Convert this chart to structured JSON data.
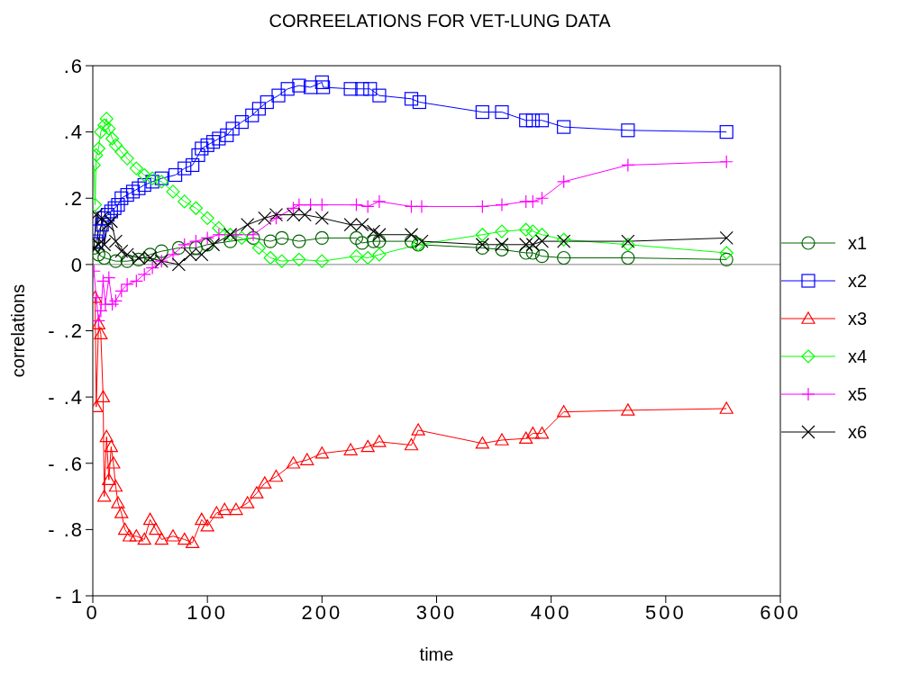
{
  "chart_data": {
    "type": "line",
    "title": "CORREELATIONS FOR VET-LUNG DATA",
    "xlabel": "time",
    "ylabel": "correlations",
    "xlim": [
      0,
      600
    ],
    "xticks": [
      0,
      100,
      200,
      300,
      400,
      500,
      600
    ],
    "ylim": [
      -1,
      0.6
    ],
    "yticks": [
      {
        "value": -1,
        "label": "- 1"
      },
      {
        "value": -0.8,
        "label": "- .8"
      },
      {
        "value": -0.6,
        "label": "- .6"
      },
      {
        "value": -0.4,
        "label": "- .4"
      },
      {
        "value": -0.2,
        "label": "- .2"
      },
      {
        "value": 0,
        "label": "0"
      },
      {
        "value": 0.2,
        "label": ".2"
      },
      {
        "value": 0.4,
        "label": ".4"
      },
      {
        "value": 0.6,
        "label": ".6"
      }
    ],
    "grid": false,
    "legend": "right",
    "ref_lines": [
      {
        "axis": "y",
        "value": 0,
        "color": "#808080"
      }
    ],
    "series": [
      {
        "name": "x1",
        "color": "#006400",
        "marker": "circle",
        "x": [
          1,
          5,
          10,
          20,
          30,
          40,
          50,
          60,
          75,
          90,
          100,
          120,
          140,
          155,
          165,
          180,
          200,
          230,
          235,
          245,
          250,
          278,
          284,
          340,
          357,
          378,
          384,
          392,
          411,
          467,
          553
        ],
        "values": [
          0.05,
          0.03,
          0.02,
          0.01,
          0.01,
          0.015,
          0.03,
          0.04,
          0.05,
          0.05,
          0.06,
          0.07,
          0.08,
          0.07,
          0.08,
          0.07,
          0.08,
          0.08,
          0.065,
          0.07,
          0.07,
          0.07,
          0.06,
          0.05,
          0.045,
          0.035,
          0.035,
          0.025,
          0.02,
          0.02,
          0.015
        ]
      },
      {
        "name": "x2",
        "color": "#0000ff",
        "marker": "square",
        "x": [
          3,
          5,
          8,
          10,
          13,
          16,
          19,
          22,
          25,
          30,
          35,
          40,
          45,
          52,
          60,
          72,
          80,
          87,
          92,
          95,
          100,
          105,
          110,
          117,
          122,
          130,
          139,
          145,
          152,
          162,
          170,
          180,
          190,
          200,
          201,
          225,
          235,
          242,
          250,
          278,
          285,
          340,
          357,
          378,
          384,
          392,
          411,
          467,
          553
        ],
        "values": [
          0.07,
          0.1,
          0.12,
          0.14,
          0.15,
          0.16,
          0.17,
          0.18,
          0.2,
          0.21,
          0.22,
          0.23,
          0.24,
          0.25,
          0.26,
          0.27,
          0.29,
          0.3,
          0.33,
          0.35,
          0.36,
          0.37,
          0.38,
          0.39,
          0.41,
          0.43,
          0.45,
          0.47,
          0.49,
          0.51,
          0.53,
          0.54,
          0.535,
          0.55,
          0.535,
          0.53,
          0.53,
          0.53,
          0.51,
          0.5,
          0.49,
          0.46,
          0.46,
          0.435,
          0.435,
          0.435,
          0.415,
          0.405,
          0.4
        ]
      },
      {
        "name": "x3",
        "color": "#ff0000",
        "marker": "triangle",
        "x": [
          2,
          3,
          5,
          7,
          9,
          10,
          12,
          14,
          16,
          18,
          20,
          22,
          25,
          28,
          32,
          38,
          45,
          50,
          55,
          60,
          70,
          80,
          87,
          95,
          100,
          108,
          115,
          125,
          135,
          143,
          150,
          160,
          175,
          187,
          200,
          225,
          240,
          250,
          278,
          284,
          340,
          357,
          378,
          384,
          392,
          411,
          467,
          553
        ],
        "values": [
          -0.1,
          -0.43,
          -0.18,
          -0.21,
          -0.4,
          -0.7,
          -0.52,
          -0.65,
          -0.55,
          -0.6,
          -0.67,
          -0.72,
          -0.75,
          -0.8,
          -0.82,
          -0.82,
          -0.83,
          -0.77,
          -0.8,
          -0.83,
          -0.82,
          -0.83,
          -0.84,
          -0.77,
          -0.79,
          -0.75,
          -0.74,
          -0.74,
          -0.72,
          -0.69,
          -0.66,
          -0.64,
          -0.6,
          -0.59,
          -0.57,
          -0.56,
          -0.55,
          -0.535,
          -0.545,
          -0.5,
          -0.54,
          -0.53,
          -0.525,
          -0.51,
          -0.51,
          -0.445,
          -0.44,
          -0.435
        ]
      },
      {
        "name": "x4",
        "color": "#00ff00",
        "marker": "diamond",
        "x": [
          1,
          2,
          3,
          5,
          7,
          10,
          12,
          14,
          17,
          20,
          25,
          30,
          38,
          45,
          52,
          60,
          70,
          80,
          90,
          100,
          110,
          120,
          130,
          145,
          155,
          165,
          180,
          200,
          230,
          240,
          250,
          284,
          340,
          357,
          378,
          384,
          392,
          411,
          467,
          553
        ],
        "values": [
          0.3,
          0.18,
          0.33,
          0.35,
          0.4,
          0.42,
          0.44,
          0.41,
          0.38,
          0.36,
          0.34,
          0.32,
          0.29,
          0.27,
          0.26,
          0.25,
          0.22,
          0.19,
          0.17,
          0.14,
          0.11,
          0.09,
          0.08,
          0.05,
          0.02,
          0.01,
          0.015,
          0.01,
          0.025,
          0.02,
          0.03,
          0.06,
          0.09,
          0.1,
          0.105,
          0.1,
          0.09,
          0.075,
          0.06,
          0.035
        ]
      },
      {
        "name": "x5",
        "color": "#ff00ff",
        "marker": "cross",
        "x": [
          1,
          3,
          5,
          7,
          9,
          11,
          14,
          17,
          20,
          25,
          30,
          38,
          45,
          52,
          60,
          70,
          80,
          90,
          100,
          110,
          125,
          140,
          160,
          175,
          180,
          190,
          200,
          230,
          240,
          250,
          278,
          287,
          340,
          357,
          378,
          384,
          392,
          411,
          467,
          553
        ],
        "values": [
          -0.02,
          -0.1,
          -0.17,
          -0.14,
          -0.05,
          -0.12,
          -0.04,
          -0.12,
          -0.11,
          -0.08,
          -0.06,
          -0.05,
          -0.03,
          -0.01,
          0.01,
          0.03,
          0.06,
          0.07,
          0.08,
          0.09,
          0.09,
          0.09,
          0.14,
          0.17,
          0.18,
          0.18,
          0.18,
          0.18,
          0.175,
          0.19,
          0.175,
          0.175,
          0.175,
          0.18,
          0.19,
          0.19,
          0.2,
          0.25,
          0.3,
          0.31
        ]
      },
      {
        "name": "x6",
        "color": "#000000",
        "marker": "cross",
        "x": [
          1,
          3,
          5,
          8,
          10,
          13,
          16,
          20,
          25,
          30,
          40,
          50,
          60,
          75,
          85,
          95,
          105,
          120,
          135,
          150,
          160,
          175,
          185,
          200,
          225,
          235,
          245,
          250,
          278,
          287,
          340,
          357,
          378,
          384,
          392,
          411,
          467,
          553
        ],
        "values": [
          0.05,
          0.15,
          0.06,
          0.14,
          0.06,
          0.12,
          0.13,
          0.07,
          0.04,
          0.03,
          0.02,
          0.02,
          0.01,
          0.0,
          0.03,
          0.03,
          0.06,
          0.09,
          0.12,
          0.14,
          0.15,
          0.15,
          0.15,
          0.14,
          0.12,
          0.12,
          0.1,
          0.09,
          0.09,
          0.07,
          0.06,
          0.06,
          0.06,
          0.06,
          0.07,
          0.07,
          0.07,
          0.08
        ]
      }
    ]
  }
}
